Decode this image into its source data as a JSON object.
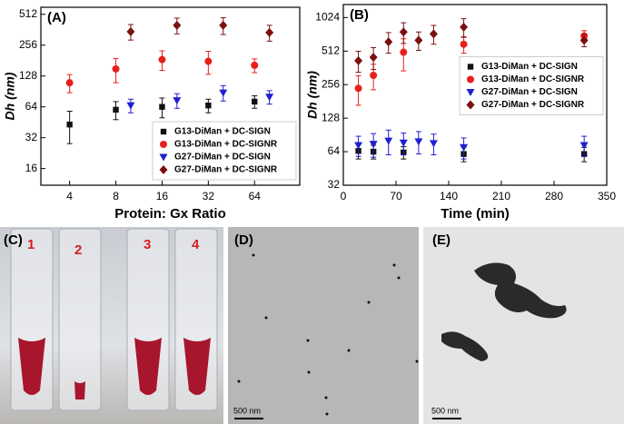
{
  "chart_data": [
    {
      "type": "scatter",
      "panel_label": "(A)",
      "xlabel": "Protein: Gx Ratio",
      "ylabel": "Dh (nm)",
      "xscale": "log",
      "yscale": "log",
      "xlim": [
        2.6,
        126
      ],
      "ylim": [
        11,
        600
      ],
      "xticks": [
        4,
        8,
        16,
        32,
        64
      ],
      "yticks": [
        16,
        32,
        64,
        128,
        256,
        512
      ],
      "legend": "lower right",
      "series": [
        {
          "name": "G13-DiMan + DC-SIGN",
          "color": "#111111",
          "marker": "square",
          "x": [
            4,
            8,
            16,
            32,
            64
          ],
          "values": [
            43,
            60,
            64,
            66,
            72
          ],
          "errors": [
            15,
            12,
            14,
            10,
            10
          ]
        },
        {
          "name": "G13-DiMan + DC-SIGNR",
          "color": "#e8201c",
          "marker": "circle",
          "x": [
            4,
            8,
            16,
            32,
            64
          ],
          "values": [
            110,
            150,
            185,
            178,
            163
          ],
          "errors": [
            22,
            40,
            40,
            45,
            25
          ]
        },
        {
          "name": "G27-DiMan + DC-SIGN",
          "color": "#1f1fd0",
          "marker": "triangle",
          "x": [
            10,
            20,
            40,
            80
          ],
          "values": [
            66,
            74,
            88,
            80
          ],
          "errors": [
            10,
            12,
            15,
            12
          ]
        },
        {
          "name": "G27-DiMan + DC-SIGNR",
          "color": "#7b1010",
          "marker": "diamond",
          "x": [
            10,
            20,
            40,
            80
          ],
          "values": [
            347,
            400,
            400,
            340
          ],
          "errors": [
            60,
            70,
            75,
            60
          ]
        }
      ]
    },
    {
      "type": "scatter",
      "panel_label": "(B)",
      "xlabel": "Time (min)",
      "ylabel": "Dh (nm)",
      "xscale": "linear",
      "yscale": "log",
      "xlim": [
        0,
        350
      ],
      "ylim": [
        32,
        1340
      ],
      "xticks": [
        0,
        70,
        140,
        210,
        280,
        350
      ],
      "yticks": [
        32,
        64,
        128,
        256,
        512,
        1024
      ],
      "legend": "center right",
      "series": [
        {
          "name": "G13-DiMan + DC-SIGN",
          "color": "#111111",
          "marker": "square",
          "x": [
            20,
            40,
            80,
            160,
            320
          ],
          "values": [
            65,
            64,
            63,
            61,
            61
          ],
          "errors": [
            10,
            9,
            8,
            9,
            9
          ]
        },
        {
          "name": "G13-DiMan + DC-SIGNR",
          "color": "#e8201c",
          "marker": "circle",
          "x": [
            20,
            40,
            80,
            160,
            320
          ],
          "values": [
            237,
            310,
            500,
            590,
            700
          ],
          "errors": [
            70,
            80,
            160,
            100,
            80
          ]
        },
        {
          "name": "G27-DiMan + DC-SIGN",
          "color": "#1f1fd0",
          "marker": "triangle",
          "x": [
            20,
            40,
            60,
            80,
            100,
            120,
            160,
            320
          ],
          "values": [
            73,
            75,
            80,
            77,
            79,
            76,
            70,
            73
          ],
          "errors": [
            15,
            18,
            20,
            17,
            18,
            16,
            15,
            15
          ]
        },
        {
          "name": "G27-DiMan + DC-SIGNR",
          "color": "#7b1010",
          "marker": "diamond",
          "x": [
            20,
            40,
            60,
            80,
            100,
            120,
            160,
            320
          ],
          "values": [
            420,
            450,
            620,
            760,
            640,
            730,
            840,
            640
          ],
          "errors": [
            90,
            100,
            130,
            160,
            120,
            140,
            160,
            80
          ]
        }
      ]
    }
  ],
  "panels": [
    {
      "label": "(C)",
      "annotations": [
        "1",
        "2",
        "3",
        "4"
      ]
    },
    {
      "label": "(D)",
      "scale_bar": "500 nm"
    },
    {
      "label": "(E)",
      "scale_bar": "500 nm"
    }
  ]
}
